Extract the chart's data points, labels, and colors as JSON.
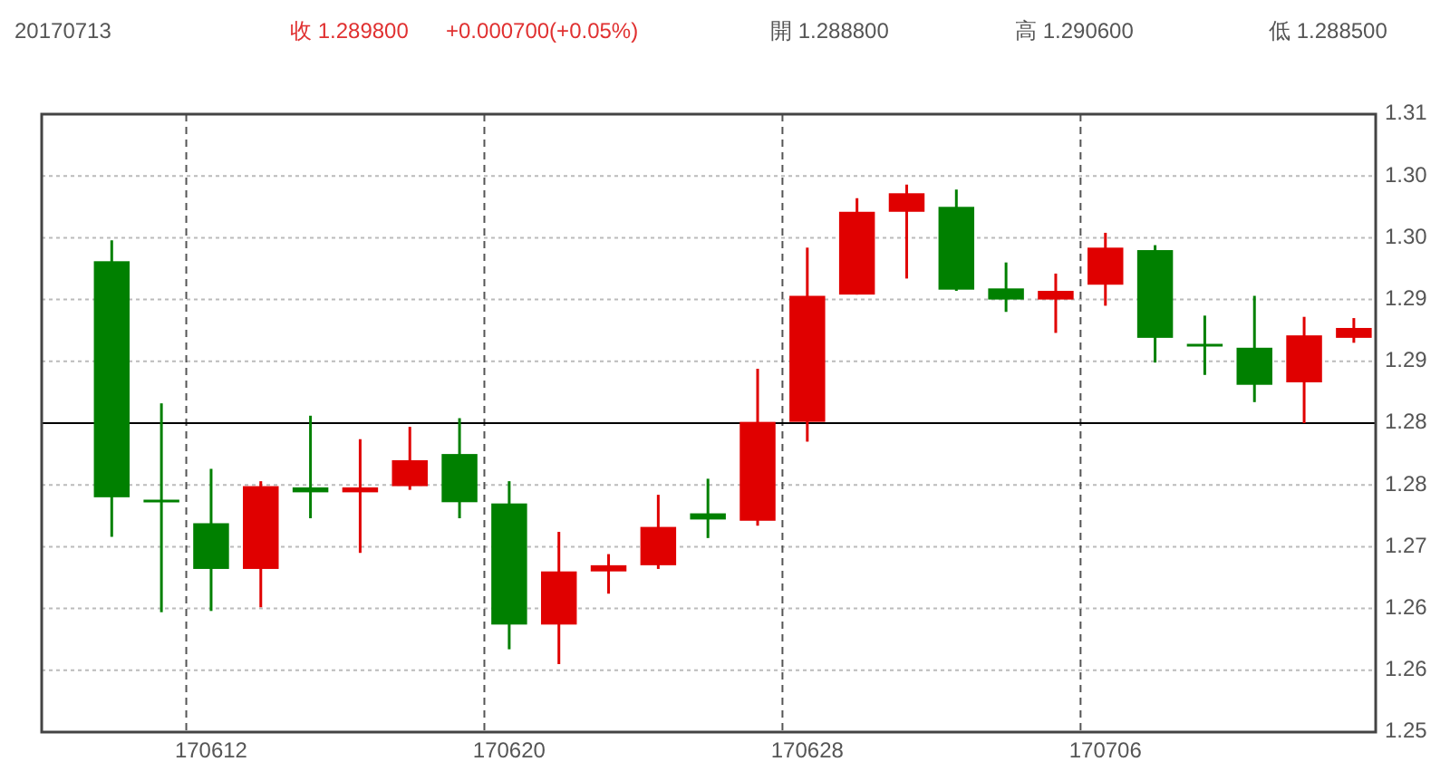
{
  "chart_data": {
    "type": "candlestick",
    "title": "20170713",
    "annotations": [
      "收 1.289800",
      "+0.000700(+0.05%)",
      "開 1.288800",
      "高 1.290600",
      "低 1.288500"
    ],
    "categories": [
      null,
      null,
      "170612",
      null,
      null,
      null,
      null,
      null,
      "170620",
      null,
      null,
      null,
      null,
      null,
      "170628",
      null,
      null,
      null,
      null,
      null,
      "170706",
      null,
      null,
      null,
      null,
      null
    ],
    "ohlc": [
      [
        1.2931,
        1.2948,
        1.2708,
        1.274
      ],
      [
        1.2737,
        1.2816,
        1.2647,
        1.2737
      ],
      [
        1.2719,
        1.2763,
        1.2648,
        1.2682
      ],
      [
        1.2682,
        1.2753,
        1.2651,
        1.2749
      ],
      [
        1.2748,
        1.2806,
        1.2723,
        1.2744
      ],
      [
        1.2744,
        1.2787,
        1.2695,
        1.2748
      ],
      [
        1.2749,
        1.2797,
        1.2746,
        1.277
      ],
      [
        1.2775,
        1.2804,
        1.2723,
        1.2736
      ],
      [
        1.2735,
        1.2753,
        1.2617,
        1.2637
      ],
      [
        1.2637,
        1.2712,
        1.2605,
        1.268
      ],
      [
        1.268,
        1.2694,
        1.2662,
        1.2685
      ],
      [
        1.2685,
        1.2742,
        1.2682,
        1.2716
      ],
      [
        1.2727,
        1.2755,
        1.2707,
        1.2722
      ],
      [
        1.2721,
        1.2844,
        1.2717,
        1.2801
      ],
      [
        1.2801,
        1.2942,
        1.2785,
        1.2903
      ],
      [
        1.2904,
        1.2982,
        1.2904,
        1.2971
      ],
      [
        1.2971,
        1.2993,
        1.2917,
        1.2986
      ],
      [
        1.2975,
        1.2989,
        1.2907,
        1.2908
      ],
      [
        1.2909,
        1.293,
        1.289,
        1.29
      ],
      [
        1.29,
        1.2921,
        1.2873,
        1.2907
      ],
      [
        1.2912,
        1.2954,
        1.2895,
        1.2942
      ],
      [
        1.294,
        1.2944,
        1.2849,
        1.2869
      ],
      [
        1.2863,
        1.2887,
        1.2839,
        1.2863
      ],
      [
        1.2861,
        1.2903,
        1.2817,
        1.2831
      ],
      [
        1.2833,
        1.2886,
        1.28,
        1.2871
      ],
      [
        1.2869,
        1.2885,
        1.2865,
        1.2877
      ]
    ],
    "colors": [
      "#008000",
      "#008000",
      "#008000",
      "#e00000",
      "#008000",
      "#e00000",
      "#e00000",
      "#008000",
      "#008000",
      "#e00000",
      "#e00000",
      "#e00000",
      "#008000",
      "#e00000",
      "#e00000",
      "#e00000",
      "#e00000",
      "#008000",
      "#008000",
      "#e00000",
      "#e00000",
      "#008000",
      "#008000",
      "#008000",
      "#e00000",
      "#e00000"
    ],
    "ylim": [
      1.255,
      1.305
    ],
    "yticks": [
      {
        "value": 1.255,
        "label": "1.25"
      },
      {
        "value": 1.26,
        "label": "1.26"
      },
      {
        "value": 1.265,
        "label": "1.26"
      },
      {
        "value": 1.27,
        "label": "1.27"
      },
      {
        "value": 1.275,
        "label": "1.28"
      },
      {
        "value": 1.28,
        "label": "1.28"
      },
      {
        "value": 1.285,
        "label": "1.29"
      },
      {
        "value": 1.29,
        "label": "1.29"
      },
      {
        "value": 1.295,
        "label": "1.30"
      },
      {
        "value": 1.3,
        "label": "1.30"
      },
      {
        "value": 1.305,
        "label": "1.31"
      }
    ],
    "ref_lines": [
      {
        "axis": "y",
        "value": 1.28,
        "color": "#000000"
      }
    ],
    "grid": true
  }
}
